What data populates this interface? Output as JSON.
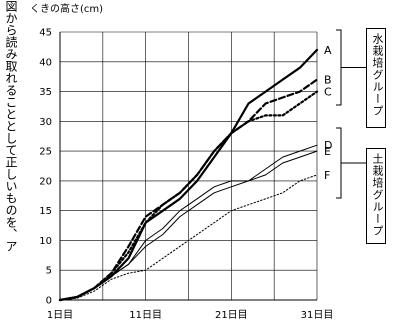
{
  "page_text": "図から読み取れることとして正しいものを、ア",
  "groups": {
    "water": "水栽培グループ",
    "soil": "土栽培グループ"
  },
  "chart_data": {
    "type": "line",
    "title": "",
    "ylabel": "くきの高さ(cm)",
    "xlabel": "",
    "x": [
      1,
      3,
      5,
      7,
      9,
      11,
      13,
      15,
      17,
      19,
      21,
      23,
      25,
      27,
      29,
      31
    ],
    "xticks": [
      {
        "value": 1,
        "label": "1日目"
      },
      {
        "value": 11,
        "label": "11日目"
      },
      {
        "value": 21,
        "label": "21日目"
      },
      {
        "value": 31,
        "label": "31日目"
      }
    ],
    "xlim": [
      1,
      31
    ],
    "ylim": [
      0,
      45
    ],
    "yticks": [
      0,
      5,
      10,
      15,
      20,
      25,
      30,
      35,
      40,
      45
    ],
    "grid": true,
    "series": [
      {
        "name": "A",
        "style": "thick-solid",
        "values": [
          0,
          0.5,
          2,
          4,
          7,
          13,
          15,
          17,
          20,
          24,
          28,
          33,
          35,
          37,
          39,
          42
        ]
      },
      {
        "name": "B",
        "style": "thick-dashed",
        "values": [
          0,
          0.5,
          2,
          4.5,
          9,
          14,
          16,
          18,
          21,
          25,
          28,
          30,
          33,
          34,
          35,
          37
        ]
      },
      {
        "name": "C",
        "style": "thick-dotted",
        "values": [
          0,
          0.5,
          2,
          4.5,
          8,
          13,
          16,
          18,
          21,
          25,
          28,
          30,
          31,
          31,
          33,
          35
        ]
      },
      {
        "name": "D",
        "style": "thin-solid",
        "values": [
          0,
          0.5,
          2,
          4,
          6,
          10,
          12,
          15,
          17,
          19,
          20,
          20,
          22,
          24,
          25,
          26
        ]
      },
      {
        "name": "E",
        "style": "thin-solid",
        "values": [
          0,
          0.5,
          2,
          4,
          6,
          9,
          11,
          14,
          16,
          18,
          19,
          20,
          21,
          23,
          24,
          25
        ]
      },
      {
        "name": "F",
        "style": "thin-dotted",
        "values": [
          0,
          0.3,
          1.5,
          3.5,
          4.5,
          5,
          7,
          9,
          11,
          13,
          15,
          16,
          17,
          18,
          20,
          21
        ]
      }
    ]
  }
}
